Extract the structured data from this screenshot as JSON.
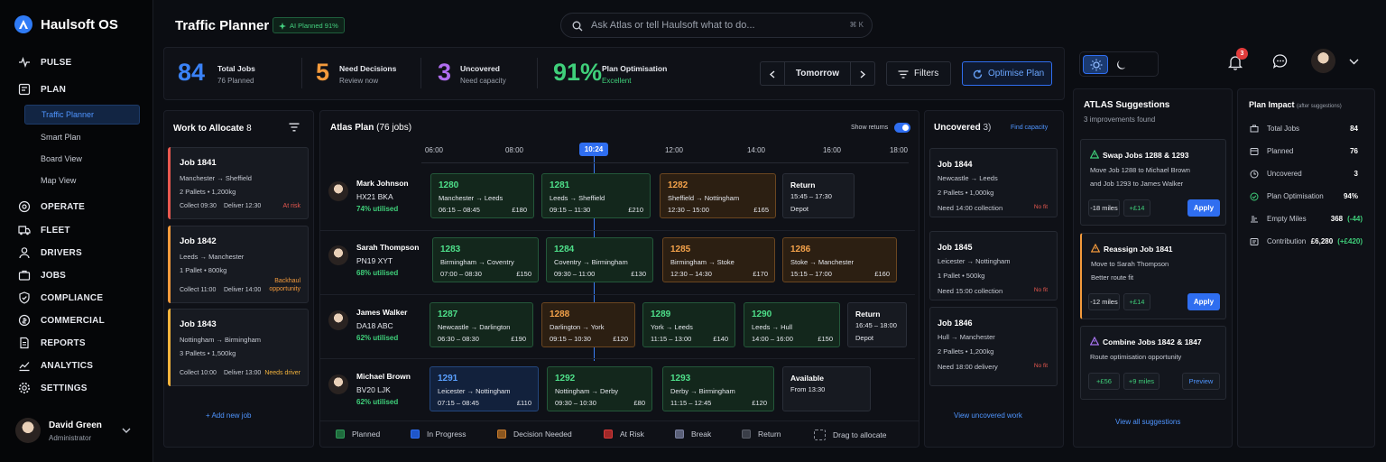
{
  "app": {
    "name": "Haulsoft OS"
  },
  "sidebar": {
    "sections": [
      {
        "label": "PULSE",
        "icon": "pulse-icon"
      },
      {
        "label": "PLAN",
        "icon": "plan-icon"
      },
      {
        "label": "OPERATE",
        "icon": "operate-icon"
      },
      {
        "label": "FLEET",
        "icon": "truck-icon"
      },
      {
        "label": "DRIVERS",
        "icon": "user-icon"
      },
      {
        "label": "JOBS",
        "icon": "briefcase-icon"
      },
      {
        "label": "COMPLIANCE",
        "icon": "shield-icon"
      },
      {
        "label": "COMMERCIAL",
        "icon": "coin-icon"
      },
      {
        "label": "REPORTS",
        "icon": "report-icon"
      },
      {
        "label": "ANALYTICS",
        "icon": "analytics-icon"
      },
      {
        "label": "SETTINGS",
        "icon": "gear-icon"
      }
    ],
    "plan_items": [
      "Traffic Planner",
      "Smart Plan",
      "Board View",
      "Map View"
    ],
    "user": {
      "name": "David Green",
      "role": "Administrator"
    }
  },
  "header": {
    "title": "Traffic Planner",
    "ai_badge": "AI Planned 91%",
    "search_placeholder": "Ask Atlas or tell Haulsoft what to do...",
    "search_shortcut": "⌘ K",
    "notification_count": "3"
  },
  "kpis": [
    {
      "value": "84",
      "label": "Total Jobs",
      "sub": "76 Planned",
      "color": "#3a82f7"
    },
    {
      "value": "5",
      "label": "Need Decisions",
      "sub": "Review now",
      "color": "#f39a3c"
    },
    {
      "value": "3",
      "label": "Uncovered",
      "sub": "Need capacity",
      "color": "#b06df0"
    },
    {
      "value": "91%",
      "label": "Plan Optimisation",
      "sub": "Excellent",
      "color": "#3fcf7a"
    }
  ],
  "controls": {
    "date": "Tomorrow",
    "filters": "Filters",
    "optimise": "Optimise Plan"
  },
  "allocate": {
    "title": "Work to Allocate",
    "count": "8",
    "add_label": "+ Add new job",
    "jobs": [
      {
        "title": "Job 1841",
        "route": "Manchester → Sheffield",
        "load": "2 Pallets • 1,200kg",
        "collect": "Collect 09:30",
        "deliver": "Deliver 12:30",
        "status": "At risk",
        "color": "#e8584f"
      },
      {
        "title": "Job 1842",
        "route": "Leeds → Manchester",
        "load": "1 Pallet • 800kg",
        "collect": "Collect 11:00",
        "deliver": "Deliver 14:00",
        "status": "Backhaul opportunity",
        "color": "#f39a3c"
      },
      {
        "title": "Job 1843",
        "route": "Nottingham → Birmingham",
        "load": "3 Pallets • 1,500kg",
        "collect": "Collect 10:00",
        "deliver": "Deliver 13:00",
        "status": "Needs driver",
        "color": "#f3b33c"
      }
    ]
  },
  "atlas_plan": {
    "title": "Atlas Plan",
    "count": "(76 jobs)",
    "show_returns": "Show returns",
    "times": [
      "06:00",
      "08:00",
      "10:24",
      "12:00",
      "14:00",
      "16:00",
      "18:00"
    ],
    "drivers": [
      {
        "name": "Mark Johnson",
        "reg": "HX21 BKA",
        "util": "74% utilised"
      },
      {
        "name": "Sarah Thompson",
        "reg": "PN19 XYT",
        "util": "68% utilised"
      },
      {
        "name": "James Walker",
        "reg": "DA18 ABC",
        "util": "62% utilised"
      },
      {
        "name": "Michael Brown",
        "reg": "BV20 LJK",
        "util": "62% utilised"
      }
    ],
    "blocks": [
      [
        {
          "id": "1280",
          "route": "Manchester → Leeds",
          "time": "06:15 – 08:45",
          "price": "£180",
          "type": "g"
        },
        {
          "id": "1281",
          "route": "Leeds → Sheffield",
          "time": "09:15 – 11:30",
          "price": "£210",
          "type": "g"
        },
        {
          "id": "1282",
          "route": "Sheffield → Nottingham",
          "time": "12:30 – 15:00",
          "price": "£165",
          "type": "o"
        },
        {
          "id": "Return",
          "route": "15:45 – 17:30",
          "time": "Depot",
          "price": "",
          "type": "gr"
        }
      ],
      [
        {
          "id": "1283",
          "route": "Birmingham → Coventry",
          "time": "07:00 – 08:30",
          "price": "£150",
          "type": "g"
        },
        {
          "id": "1284",
          "route": "Coventry → Birmingham",
          "time": "09:30 – 11:00",
          "price": "£130",
          "type": "g"
        },
        {
          "id": "1285",
          "route": "Birmingham → Stoke",
          "time": "12:30 – 14:30",
          "price": "£170",
          "type": "o"
        },
        {
          "id": "1286",
          "route": "Stoke → Manchester",
          "time": "15:15 – 17:00",
          "price": "£160",
          "type": "o"
        }
      ],
      [
        {
          "id": "1287",
          "route": "Newcastle → Darlington",
          "time": "06:30 – 08:30",
          "price": "£190",
          "type": "g"
        },
        {
          "id": "1288",
          "route": "Darlington → York",
          "time": "09:15 – 10:30",
          "price": "£120",
          "type": "o"
        },
        {
          "id": "1289",
          "route": "York → Leeds",
          "time": "11:15 – 13:00",
          "price": "£140",
          "type": "g"
        },
        {
          "id": "1290",
          "route": "Leeds → Hull",
          "time": "14:00 – 16:00",
          "price": "£150",
          "type": "g"
        },
        {
          "id": "Return",
          "route": "16:45 – 18:00",
          "time": "Depot",
          "price": "",
          "type": "gr"
        }
      ],
      [
        {
          "id": "1291",
          "route": "Leicester → Nottingham",
          "time": "07:15 – 08:45",
          "price": "£110",
          "type": "b"
        },
        {
          "id": "1292",
          "route": "Nottingham → Derby",
          "time": "09:30 – 10:30",
          "price": "£80",
          "type": "g"
        },
        {
          "id": "1293",
          "route": "Derby → Birmingham",
          "time": "11:15 – 12:45",
          "price": "£120",
          "type": "g"
        },
        {
          "id": "Available",
          "route": "From 13:30",
          "time": "",
          "price": "",
          "type": "gr"
        }
      ]
    ],
    "legend": [
      {
        "label": "Planned",
        "color": "#1f6b3d",
        "border": "#2f9a58"
      },
      {
        "label": "In Progress",
        "color": "#1f56c9",
        "border": "#2f6ef0"
      },
      {
        "label": "Decision Needed",
        "color": "#8a561f",
        "border": "#c67a2c"
      },
      {
        "label": "At Risk",
        "color": "#a02828",
        "border": "#d63a3a"
      },
      {
        "label": "Break",
        "color": "#5a6078",
        "border": "#7a80a0"
      },
      {
        "label": "Return",
        "color": "#3a3e48",
        "border": "#5a5e68"
      },
      {
        "label": "Drag to allocate",
        "color": "transparent",
        "border": "#8a8e98"
      }
    ]
  },
  "uncovered": {
    "title": "Uncovered",
    "count": "3)",
    "find": "Find capacity",
    "view_all": "View uncovered work",
    "nofit": "No fit",
    "jobs": [
      {
        "title": "Job 1844",
        "route": "Newcastle → Leeds",
        "load": "2 Pallets • 1,000kg",
        "need": "Need 14:00 collection"
      },
      {
        "title": "Job 1845",
        "route": "Leicester → Nottingham",
        "load": "1 Pallet  •  500kg",
        "need": "Need 15:00 collection"
      },
      {
        "title": "Job 1846",
        "route": "Hull → Manchester",
        "load": "2 Pallets • 1,200kg",
        "need": "Need 18:00 delivery"
      }
    ]
  },
  "suggestions": {
    "title": "ATLAS Suggestions",
    "subtitle": "3 improvements found",
    "view_all": "View all suggestions",
    "items": [
      {
        "title": "Swap Jobs 1288 & 1293",
        "desc1": "Move Job 1288 to Michael Brown",
        "desc2": "and Job 1293 to James Walker",
        "chip1": "-18 miles",
        "chip2": "+£14",
        "action": "Apply",
        "color": "#3fcf7a"
      },
      {
        "title": "Reassign Job 1841",
        "desc1": "Move to Sarah Thompson",
        "desc2": "Better route fit",
        "chip1": "-12 miles",
        "chip2": "+£14",
        "action": "Apply",
        "color": "#f39a3c"
      },
      {
        "title": "Combine Jobs 1842 & 1847",
        "desc1": "Route optimisation opportunity",
        "desc2": "",
        "chip1": "+£56",
        "chip2": "+9 miles",
        "action": "Preview",
        "color": "#a874f0"
      }
    ]
  },
  "impact": {
    "title": "Plan Impact",
    "note": "(after suggestions)",
    "rows": [
      {
        "label": "Total Jobs",
        "value": "84",
        "delta": ""
      },
      {
        "label": "Planned",
        "value": "76",
        "delta": ""
      },
      {
        "label": "Uncovered",
        "value": "3",
        "delta": ""
      },
      {
        "label": "Plan Optimisation",
        "value": "94%",
        "delta": ""
      },
      {
        "label": "Empty Miles",
        "value": "368",
        "delta": "(-44)"
      },
      {
        "label": "Contribution",
        "value": "£6,280",
        "delta": "(+£420)"
      }
    ]
  }
}
